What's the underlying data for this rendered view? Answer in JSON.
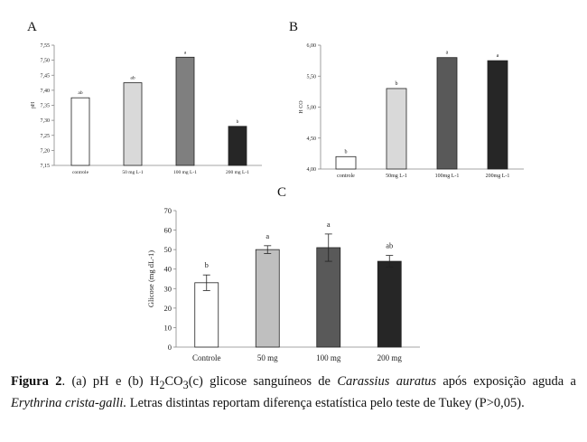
{
  "chart_data": [
    {
      "panel": "A",
      "type": "bar",
      "title": "",
      "ylabel": "pH",
      "xlabel": "",
      "categories": [
        "controle",
        "50 mg L-1",
        "100 mg L-1",
        "200 mg L-1"
      ],
      "values": [
        7.375,
        7.425,
        7.51,
        7.28
      ],
      "letters": [
        "ab",
        "ab",
        "a",
        "b"
      ],
      "colors": [
        "#ffffff",
        "#d9d9d9",
        "#7f7f7f",
        "#262626"
      ],
      "ylim": [
        7.15,
        7.55
      ],
      "yticks": [
        "7,15",
        "7,20",
        "7,25",
        "7,30",
        "7,35",
        "7,40",
        "7,45",
        "7,50",
        "7,55"
      ],
      "ytick_values": [
        7.15,
        7.2,
        7.25,
        7.3,
        7.35,
        7.4,
        7.45,
        7.5,
        7.55
      ],
      "grid": false
    },
    {
      "panel": "B",
      "type": "bar",
      "title": "",
      "ylabel": "H CO",
      "xlabel": "",
      "categories": [
        "controle",
        "50mg L-1",
        "100mg L-1",
        "200mg L-1"
      ],
      "values": [
        4.2,
        5.3,
        5.8,
        5.75
      ],
      "letters": [
        "b",
        "b",
        "a",
        "a"
      ],
      "colors": [
        "#ffffff",
        "#d9d9d9",
        "#595959",
        "#262626"
      ],
      "ylim": [
        4.0,
        6.0
      ],
      "yticks": [
        "4,00",
        "4,50",
        "5,00",
        "5,50",
        "6,00"
      ],
      "ytick_values": [
        4.0,
        4.5,
        5.0,
        5.5,
        6.0
      ],
      "grid": false
    },
    {
      "panel": "C",
      "type": "bar",
      "title": "",
      "ylabel": "Glicose (mg dL-1)",
      "xlabel": "",
      "categories": [
        "Controle",
        "50 mg",
        "100 mg",
        "200 mg"
      ],
      "values": [
        33,
        50,
        51,
        44
      ],
      "errors": [
        4,
        2,
        7,
        3
      ],
      "letters": [
        "b",
        "a",
        "a",
        "ab"
      ],
      "colors": [
        "#ffffff",
        "#bfbfbf",
        "#595959",
        "#262626"
      ],
      "ylim": [
        0,
        70
      ],
      "yticks": [
        "0",
        "10",
        "20",
        "30",
        "40",
        "50",
        "60",
        "70"
      ],
      "ytick_values": [
        0,
        10,
        20,
        30,
        40,
        50,
        60,
        70
      ],
      "grid": false
    }
  ],
  "labels": {
    "a": "A",
    "b": "B",
    "c": "C"
  },
  "caption": {
    "fig": "Figura 2",
    "part1": ". (a) pH e (b) H",
    "sub2": "2",
    "co": "CO",
    "sub3": "3",
    "part2": "(c) glicose sanguíneos de ",
    "species1": "Carassius auratus",
    "part3": " após exposição aguda a ",
    "species2": "Erythrina crista-galli.",
    "part4": " Letras distintas reportam diferença estatística pelo teste de Tukey (P>0,05)."
  }
}
